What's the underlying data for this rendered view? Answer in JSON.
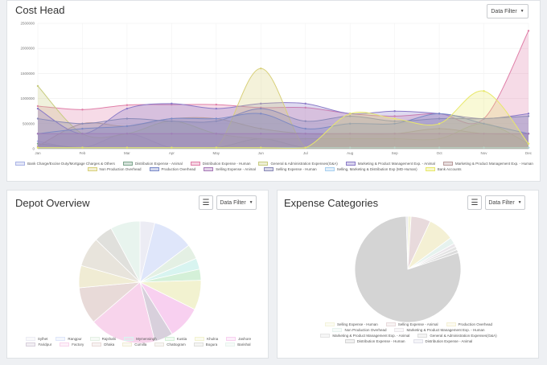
{
  "cost_head": {
    "title": "Cost Head",
    "filter_label": "Data Filter",
    "chart_data": {
      "type": "area",
      "x": [
        "Jan",
        "Feb",
        "Mar",
        "Apr",
        "May",
        "Jun",
        "Jul",
        "Aug",
        "Sep",
        "Oct",
        "Nov",
        "Dec"
      ],
      "y_ticks": [
        "0",
        "500000",
        "1000000",
        "1500000",
        "2000000",
        "2500000"
      ],
      "ylim": [
        0,
        2500000
      ],
      "series": [
        {
          "name": "Bank Charge/Excise Duty/Mortgage Charges & Others",
          "color": "#aab4e6",
          "values": [
            150000,
            20000,
            300000,
            20000,
            20000,
            20000,
            20000,
            20000,
            20000,
            20000,
            20000,
            20000
          ]
        },
        {
          "name": "Distribution Expense - Animal",
          "color": "#7ea68e",
          "values": [
            100000,
            20000,
            20000,
            20000,
            20000,
            200000,
            20000,
            20000,
            20000,
            20000,
            20000,
            20000
          ]
        },
        {
          "name": "Distribution Expense - Human",
          "color": "#e07fa8",
          "values": [
            850000,
            780000,
            870000,
            880000,
            880000,
            820000,
            820000,
            700000,
            650000,
            700000,
            600000,
            2350000
          ]
        },
        {
          "name": "General & Administration Expenses(G&A)",
          "color": "#c8cc80",
          "values": [
            1250000,
            300000,
            300000,
            550000,
            300000,
            200000,
            200000,
            200000,
            200000,
            200000,
            500000,
            100000
          ]
        },
        {
          "name": "Marketing & Product Management Exp. - Animal",
          "color": "#8a7ac8",
          "values": [
            800000,
            300000,
            800000,
            900000,
            800000,
            900000,
            900000,
            700000,
            750000,
            700000,
            600000,
            700000
          ]
        },
        {
          "name": "Marketing & Product Management Exp. - Human",
          "color": "#b89a9a",
          "values": [
            50000,
            500000,
            450000,
            600000,
            600000,
            400000,
            300000,
            300000,
            300000,
            400000,
            300000,
            300000
          ]
        },
        {
          "name": "Non Production Overhead",
          "color": "#d8d07a",
          "values": [
            20000,
            20000,
            20000,
            20000,
            20000,
            1600000,
            20000,
            20000,
            20000,
            20000,
            20000,
            20000
          ]
        },
        {
          "name": "Production Overhead",
          "color": "#7a8ac8",
          "values": [
            300000,
            400000,
            450000,
            600000,
            600000,
            700000,
            400000,
            500000,
            500000,
            700000,
            500000,
            300000
          ]
        },
        {
          "name": "Selling Expense - Animal",
          "color": "#a87ab8",
          "values": [
            300000,
            300000,
            300000,
            300000,
            300000,
            300000,
            300000,
            300000,
            300000,
            300000,
            300000,
            300000
          ]
        },
        {
          "name": "Selling Expense - Human",
          "color": "#8a8ab8",
          "values": [
            600000,
            500000,
            600000,
            550000,
            550000,
            800000,
            550000,
            650000,
            550000,
            600000,
            600000,
            650000
          ]
        },
        {
          "name": "Selling, Marketing & Distribution Exp (MD-Human)",
          "color": "#a8d0f0",
          "values": [
            20000,
            20000,
            20000,
            20000,
            20000,
            20000,
            20000,
            20000,
            20000,
            20000,
            20000,
            20000
          ]
        },
        {
          "name": "Bank Accounts",
          "color": "#e8e86a",
          "values": [
            20000,
            20000,
            20000,
            20000,
            20000,
            20000,
            20000,
            700000,
            600000,
            500000,
            1150000,
            100000
          ]
        }
      ]
    }
  },
  "depot_overview": {
    "title": "Depot Overview",
    "filter_label": "Data Filter",
    "chart_data": {
      "type": "pie",
      "slices": [
        {
          "label": "Sylhet",
          "value": 4,
          "color": "#ececf4"
        },
        {
          "label": "Rangpur",
          "value": 11,
          "color": "#dfe6fa"
        },
        {
          "label": "Rajshahi",
          "value": 4,
          "color": "#e4f0e4"
        },
        {
          "label": "Mymensingh",
          "value": 3,
          "color": "#d8f4f0"
        },
        {
          "label": "Kustia",
          "value": 3,
          "color": "#d4f0d8"
        },
        {
          "label": "Khulna",
          "value": 8,
          "color": "#f2f2d0"
        },
        {
          "label": "Jashore",
          "value": 9,
          "color": "#f8d0f0"
        },
        {
          "label": "Faridpur",
          "value": 5,
          "color": "#d8d0dc"
        },
        {
          "label": "Factory",
          "value": 18,
          "color": "#f8d4ec"
        },
        {
          "label": "Dhaka",
          "value": 10,
          "color": "#e8dad8"
        },
        {
          "label": "Cumilla",
          "value": 6,
          "color": "#f0ecd4"
        },
        {
          "label": "Chattogram",
          "value": 8,
          "color": "#e8e4dc"
        },
        {
          "label": "Bogura",
          "value": 5,
          "color": "#e0e0dc"
        },
        {
          "label": "Barishal",
          "value": 8,
          "color": "#e8f4ee"
        }
      ]
    }
  },
  "expense_categories": {
    "title": "Expense Categories",
    "filter_label": "Data Filter",
    "chart_data": {
      "type": "pie",
      "slices": [
        {
          "label": "Selling Expense - Human",
          "value": 1,
          "color": "#f4f4dc"
        },
        {
          "label": "Selling Expense - Animal",
          "value": 6,
          "color": "#e8dadc"
        },
        {
          "label": "Production Overhead",
          "value": 8,
          "color": "#f4f0d4"
        },
        {
          "label": "Non Production Overhead",
          "value": 2,
          "color": "#e6f2ee"
        },
        {
          "label": "Marketing & Product Management Exp. - Human",
          "value": 1,
          "color": "#eae6ea"
        },
        {
          "label": "Marketing & Product Management Exp. - Animal",
          "value": 1,
          "color": "#e4e4e4"
        },
        {
          "label": "General & Administration Expenses(G&A)",
          "value": 1,
          "color": "#dcdcdc"
        },
        {
          "label": "Distribution Expense - Human",
          "value": 80,
          "color": "#d4d4d4"
        },
        {
          "label": "Distribution Expense - Animal",
          "value": 0.5,
          "color": "#e0e0ea"
        }
      ]
    }
  },
  "icons": {
    "list": "list-icon",
    "caret": "caret-down-icon"
  }
}
